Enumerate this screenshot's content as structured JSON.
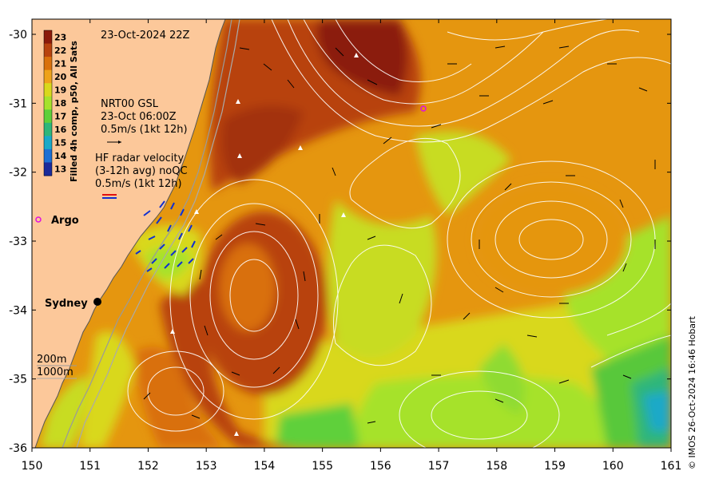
{
  "map": {
    "timestamp": "23-Oct-2024 22Z",
    "colorbar": {
      "label": "Filled 4h comp, p50, All Sats",
      "ticks": [
        "23",
        "22",
        "21",
        "20",
        "19",
        "18",
        "17",
        "16",
        "15",
        "14",
        "13"
      ],
      "colors": [
        "#8b1a0a",
        "#b8420e",
        "#d9700c",
        "#eea21a",
        "#d9d81c",
        "#a6e22c",
        "#5fd03a",
        "#2fb67a",
        "#1aa9c8",
        "#1c6fd4",
        "#1a2a9a"
      ]
    },
    "legend": {
      "gsl_line1": "NRT00 GSL",
      "gsl_line2": "23-Oct 06:00Z",
      "gsl_line3": "0.5m/s (1kt 12h)",
      "hf_line1": "HF radar velocity",
      "hf_line2": "(3-12h avg) noQC",
      "hf_line3": "0.5m/s (1kt 12h)"
    },
    "argo_label": "Argo",
    "city_label": "Sydney",
    "depth_label_1": "200m",
    "depth_label_2": "1000m",
    "x_ticks": [
      "150",
      "151",
      "152",
      "153",
      "154",
      "155",
      "156",
      "157",
      "158",
      "159",
      "160",
      "161"
    ],
    "y_ticks": [
      "-30",
      "-31",
      "-32",
      "-33",
      "-34",
      "-35",
      "-36"
    ],
    "credit": "© IMOS 26-Oct-2024 16:46 Hobart",
    "colors": {
      "land": "#fcc89a",
      "warm": "#b8420e",
      "core": "#8b1a0a",
      "mid": "#e5960f",
      "cool": "#c8dc22",
      "green": "#58c83a",
      "blue": "#1aa9c8",
      "argo": "#e010e0"
    }
  }
}
